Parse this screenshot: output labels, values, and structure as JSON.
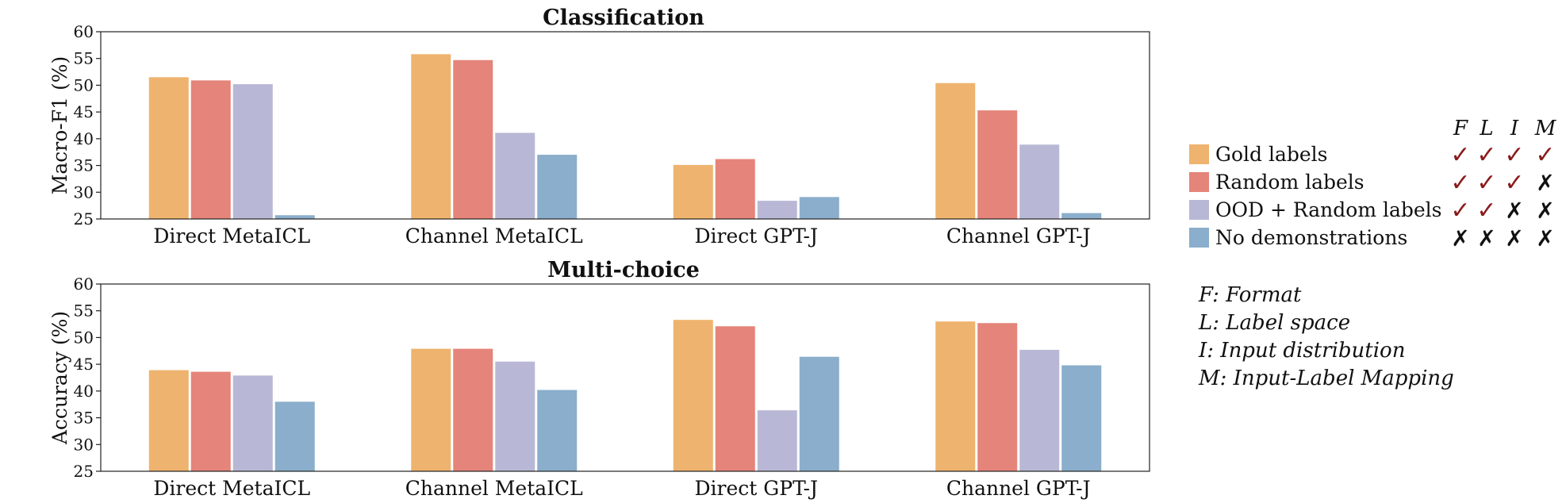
{
  "chart_data": [
    {
      "type": "bar",
      "title": "Classification",
      "ylabel": "Macro-F1 (%)",
      "xlabel": "",
      "ylim": [
        25,
        60
      ],
      "yticks": [
        25,
        30,
        35,
        40,
        45,
        50,
        55,
        60
      ],
      "categories": [
        "Direct MetaICL",
        "Channel MetaICL",
        "Direct GPT-J",
        "Channel GPT-J"
      ],
      "series": [
        {
          "name": "Gold labels",
          "values": [
            51.5,
            55.8,
            35.1,
            50.4
          ]
        },
        {
          "name": "Random labels",
          "values": [
            50.9,
            54.7,
            36.2,
            45.3
          ]
        },
        {
          "name": "OOD + Random labels",
          "values": [
            50.2,
            41.1,
            28.4,
            38.9
          ]
        },
        {
          "name": "No demonstrations",
          "values": [
            25.7,
            37.0,
            29.1,
            26.1
          ]
        }
      ],
      "grid": false
    },
    {
      "type": "bar",
      "title": "Multi-choice",
      "ylabel": "Accuracy (%)",
      "xlabel": "",
      "ylim": [
        25,
        60
      ],
      "yticks": [
        25,
        30,
        35,
        40,
        45,
        50,
        55,
        60
      ],
      "categories": [
        "Direct MetaICL",
        "Channel MetaICL",
        "Direct GPT-J",
        "Channel GPT-J"
      ],
      "series": [
        {
          "name": "Gold labels",
          "values": [
            43.9,
            47.9,
            53.3,
            53.0
          ]
        },
        {
          "name": "Random labels",
          "values": [
            43.6,
            47.9,
            52.1,
            52.7
          ]
        },
        {
          "name": "OOD + Random labels",
          "values": [
            42.9,
            45.5,
            36.4,
            47.7
          ]
        },
        {
          "name": "No demonstrations",
          "values": [
            38.0,
            40.2,
            46.4,
            44.8
          ]
        }
      ],
      "grid": false
    }
  ],
  "colors": {
    "series": [
      "#eeb36e",
      "#e5847a",
      "#b8b8d6",
      "#8aaecb"
    ],
    "check": "#8b1a1a",
    "cross": "#111111"
  },
  "legend": {
    "headers": [
      "F",
      "L",
      "I",
      "M"
    ],
    "entries": [
      {
        "label": "Gold labels",
        "marks": [
          "✓",
          "✓",
          "✓",
          "✓"
        ]
      },
      {
        "label": "Random labels",
        "marks": [
          "✓",
          "✓",
          "✓",
          "✗"
        ]
      },
      {
        "label": "OOD + Random labels",
        "marks": [
          "✓",
          "✓",
          "✗",
          "✗"
        ]
      },
      {
        "label": "No demonstrations",
        "marks": [
          "✗",
          "✗",
          "✗",
          "✗"
        ]
      }
    ]
  },
  "key": [
    "F: Format",
    "L: Label space",
    "I: Input distribution",
    "M: Input-Label Mapping"
  ]
}
